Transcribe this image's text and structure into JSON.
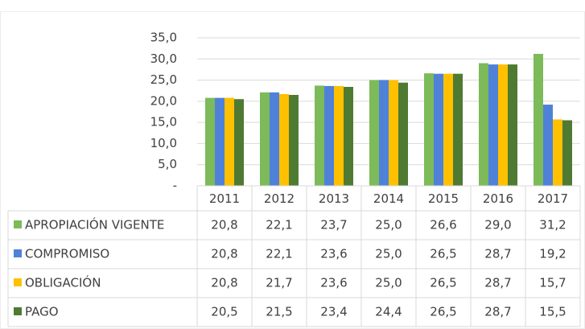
{
  "chart_data": {
    "type": "bar",
    "categories": [
      "2011",
      "2012",
      "2013",
      "2014",
      "2015",
      "2016",
      "2017"
    ],
    "series": [
      {
        "name": "APROPIACIÓN VIGENTE",
        "color": "#7cba5a",
        "values": [
          20.8,
          22.1,
          23.7,
          25.0,
          26.6,
          29.0,
          31.2
        ],
        "value_labels": [
          "20,8",
          "22,1",
          "23,7",
          "25,0",
          "26,6",
          "29,0",
          "31,2"
        ]
      },
      {
        "name": "COMPROMISO",
        "color": "#4f81d9",
        "values": [
          20.8,
          22.1,
          23.6,
          25.0,
          26.5,
          28.7,
          19.2
        ],
        "value_labels": [
          "20,8",
          "22,1",
          "23,6",
          "25,0",
          "26,5",
          "28,7",
          "19,2"
        ]
      },
      {
        "name": "OBLIGACIÓN",
        "color": "#ffc000",
        "values": [
          20.8,
          21.7,
          23.6,
          25.0,
          26.5,
          28.7,
          15.7
        ],
        "value_labels": [
          "20,8",
          "21,7",
          "23,6",
          "25,0",
          "26,5",
          "28,7",
          "15,7"
        ]
      },
      {
        "name": "PAGO",
        "color": "#4f7a32",
        "values": [
          20.5,
          21.5,
          23.4,
          24.4,
          26.5,
          28.7,
          15.5
        ],
        "value_labels": [
          "20,5",
          "21,5",
          "23,4",
          "24,4",
          "26,5",
          "28,7",
          "15,5"
        ]
      }
    ],
    "ylim": [
      0,
      35
    ],
    "yticks": [
      {
        "value": 0,
        "label": "-"
      },
      {
        "value": 5,
        "label": "5,0"
      },
      {
        "value": 10,
        "label": "10,0"
      },
      {
        "value": 15,
        "label": "15,0"
      },
      {
        "value": 20,
        "label": "20,0"
      },
      {
        "value": 25,
        "label": "25,0"
      },
      {
        "value": 30,
        "label": "30,0"
      },
      {
        "value": 35,
        "label": "35,0"
      }
    ],
    "grid": true
  }
}
